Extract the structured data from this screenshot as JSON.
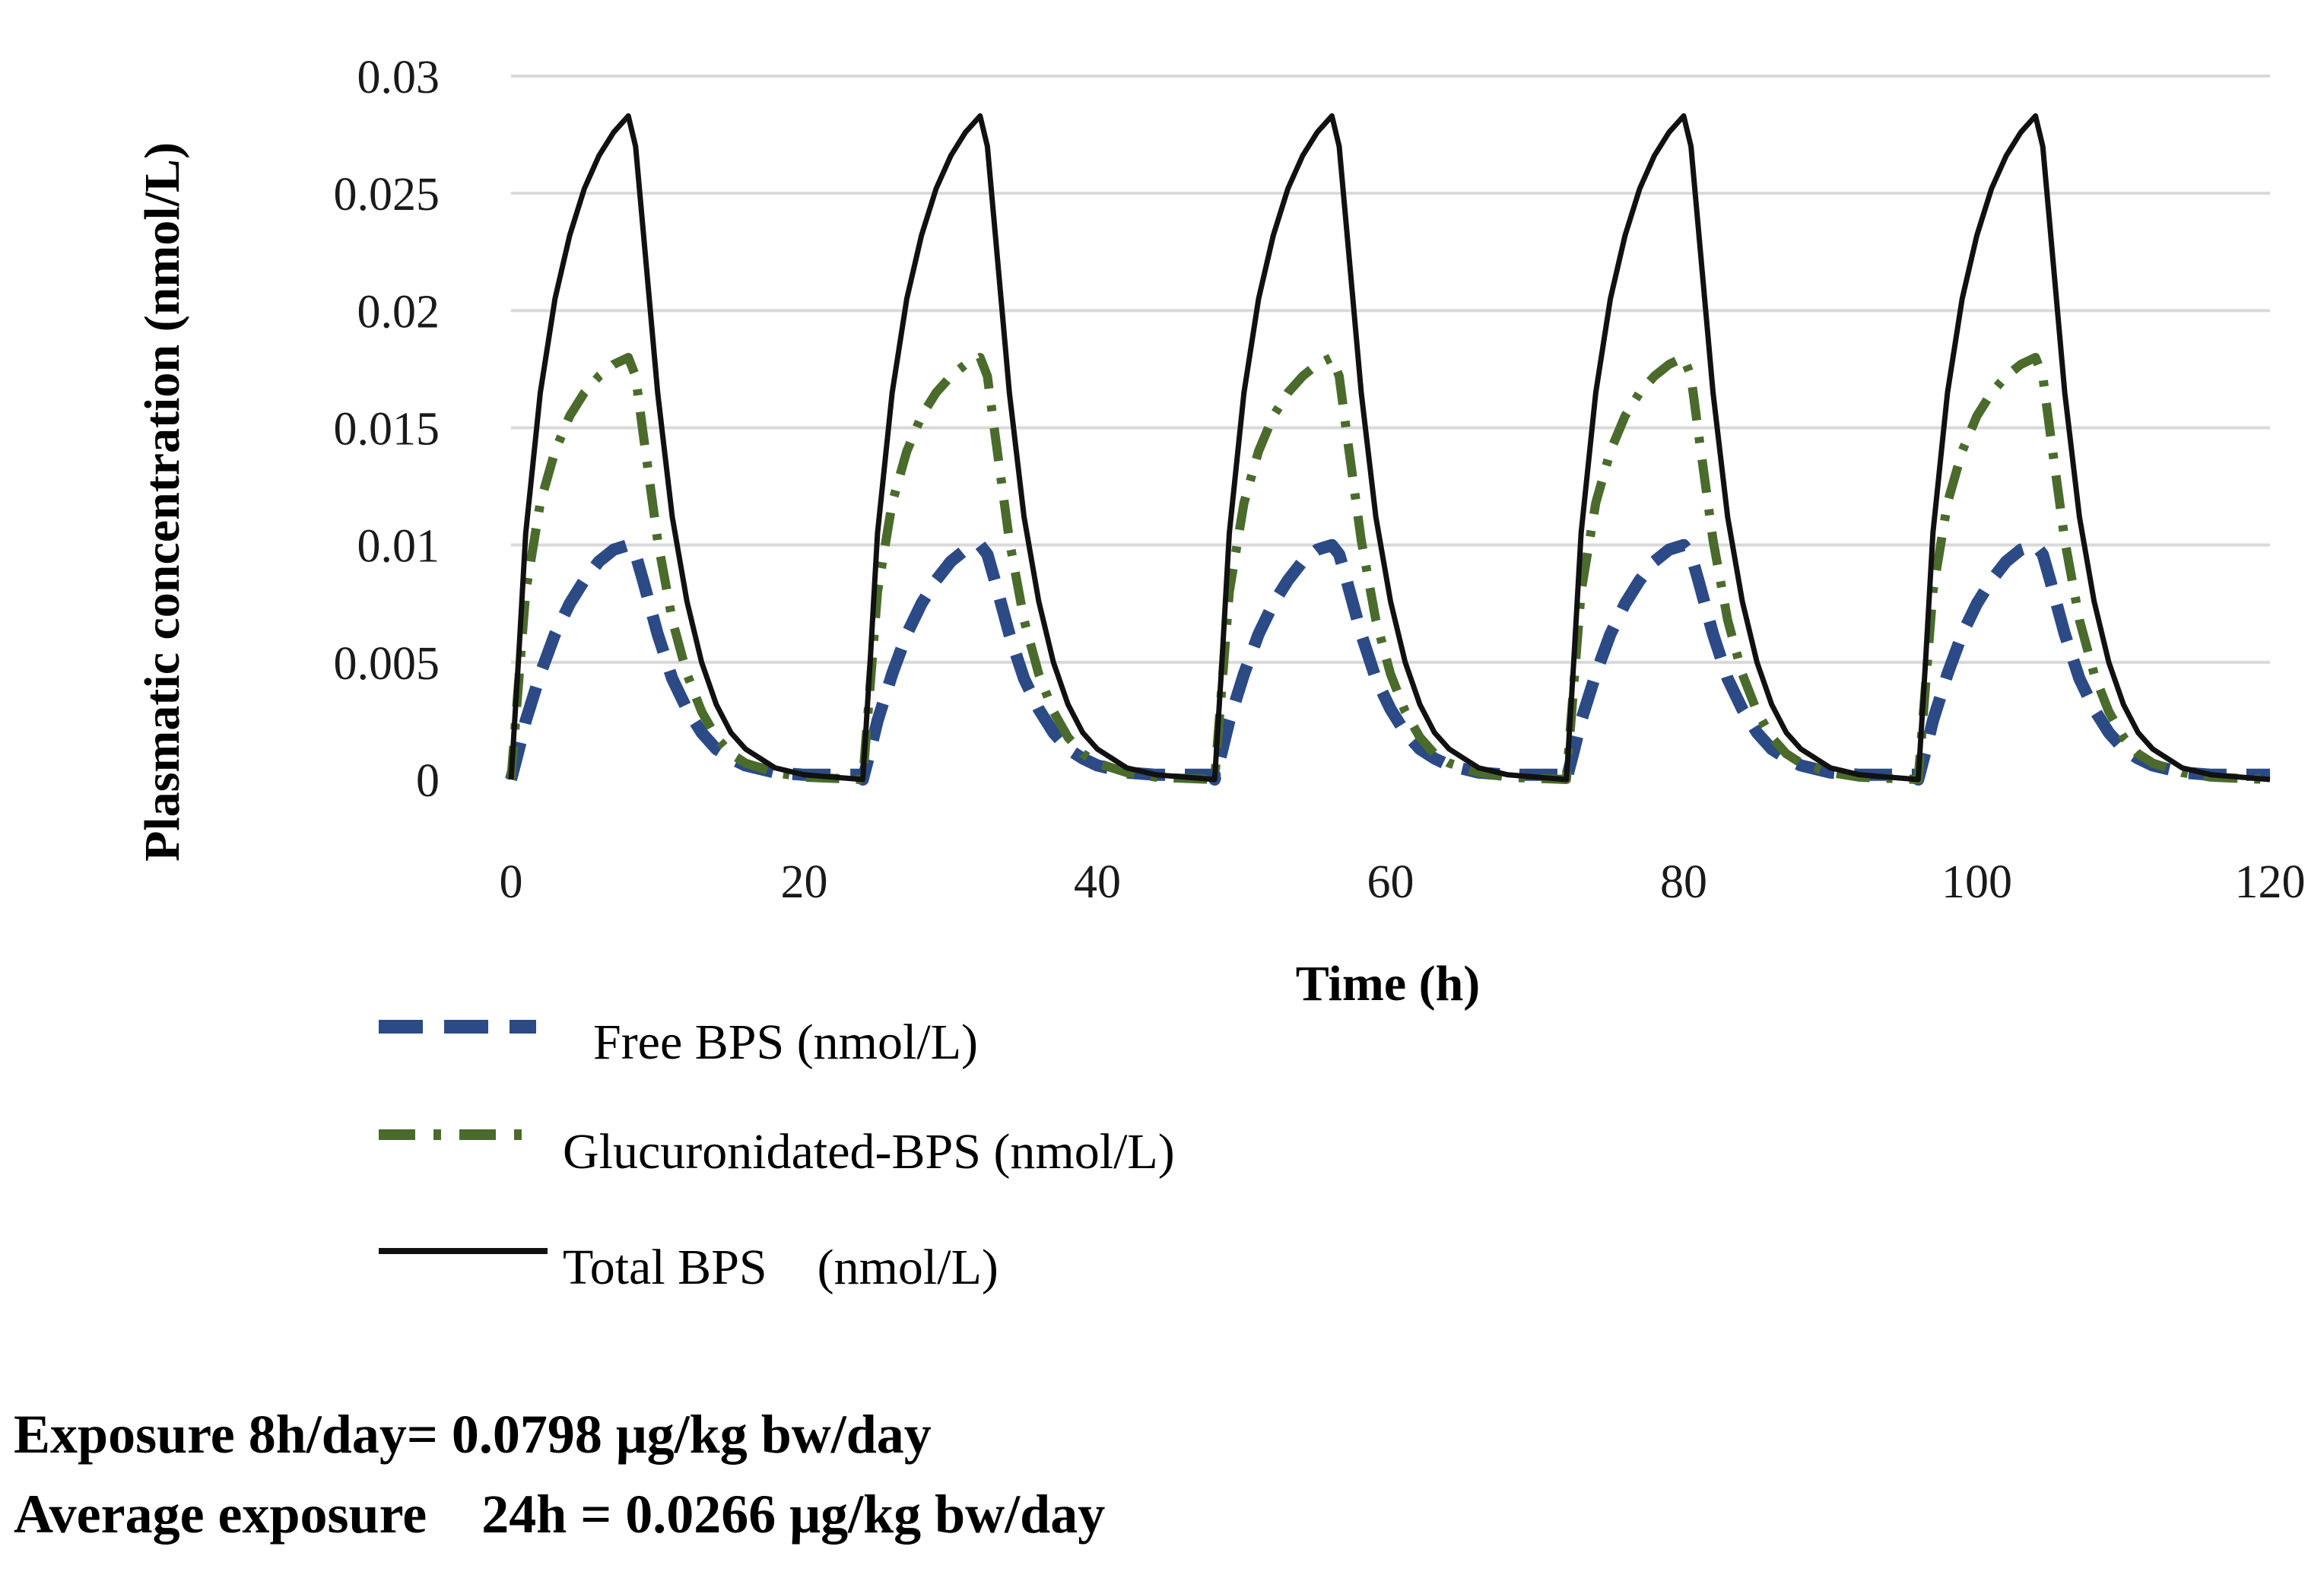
{
  "chart_data": {
    "type": "line",
    "title": "",
    "xlabel": "Time (h)",
    "ylabel": "Plasmatic concentration (nmol/L)",
    "xlim": [
      0,
      120
    ],
    "ylim": [
      0,
      0.03
    ],
    "x_ticks": [
      "0",
      "20",
      "40",
      "60",
      "80",
      "100",
      "120"
    ],
    "y_ticks": [
      "0",
      "0.005",
      "0.01",
      "0.015",
      "0.02",
      "0.025",
      "0.03"
    ],
    "grid": "horizontal",
    "legend_position": "bottom",
    "exposure_cycle": {
      "period_h": 24,
      "exposure_duration_h": 8,
      "cycle_start_h": [
        0,
        24,
        48,
        72,
        96
      ]
    },
    "series": [
      {
        "name": "Free BPS (nmol/L)",
        "style": "dashed",
        "color": "#2b4a86",
        "cycle_profile": {
          "t": [
            0,
            0.5,
            1,
            2,
            3,
            4,
            5,
            6,
            7,
            8,
            8.5,
            9,
            10,
            11,
            12,
            13,
            14,
            15,
            16,
            18,
            20,
            22,
            24
          ],
          "c": [
            0,
            0.0012,
            0.0025,
            0.0045,
            0.0062,
            0.0075,
            0.0085,
            0.0093,
            0.0098,
            0.01,
            0.0096,
            0.0085,
            0.0062,
            0.0043,
            0.003,
            0.002,
            0.0013,
            0.0009,
            0.0006,
            0.0003,
            0.0002,
            0.0002,
            0.0002
          ]
        }
      },
      {
        "name": "Glucuronidated-BPS (nmol/L)",
        "style": "dash-dot",
        "color": "#4a6b2c",
        "cycle_profile": {
          "t": [
            0,
            0.5,
            1,
            2,
            3,
            4,
            5,
            6,
            7,
            8,
            8.5,
            9,
            10,
            11,
            12,
            13,
            14,
            15,
            16,
            18,
            20,
            22,
            24
          ],
          "c": [
            0,
            0.004,
            0.008,
            0.0118,
            0.014,
            0.0155,
            0.0165,
            0.0172,
            0.0177,
            0.018,
            0.0172,
            0.0148,
            0.0102,
            0.0068,
            0.0045,
            0.0029,
            0.0018,
            0.0011,
            0.0007,
            0.0003,
            0.0001,
            5e-05,
            0
          ]
        }
      },
      {
        "name": "Total BPS (nmol/L)",
        "style": "solid",
        "color": "#111111",
        "cycle_profile": {
          "t": [
            0,
            0.5,
            1,
            2,
            3,
            4,
            5,
            6,
            7,
            8,
            8.5,
            9,
            10,
            11,
            12,
            13,
            14,
            15,
            16,
            18,
            20,
            22,
            24
          ],
          "c": [
            0,
            0.005,
            0.0105,
            0.0165,
            0.0205,
            0.0232,
            0.0252,
            0.0266,
            0.0276,
            0.0283,
            0.027,
            0.0235,
            0.0165,
            0.0112,
            0.0076,
            0.005,
            0.0032,
            0.002,
            0.0013,
            0.0005,
            0.0002,
            0.0001,
            0
          ]
        }
      }
    ]
  },
  "legend": [
    {
      "label": "Free BPS (nmol/L)"
    },
    {
      "label": "Glucuronidated-BPS (nmol/L)"
    },
    {
      "label": "Total BPS    (nmol/L)"
    }
  ],
  "notes": {
    "exposure_line": "Exposure 8h/day= 0.0798 μg/kg bw/day",
    "average_line": "Average exposure    24h = 0.0266 μg/kg bw/day"
  }
}
